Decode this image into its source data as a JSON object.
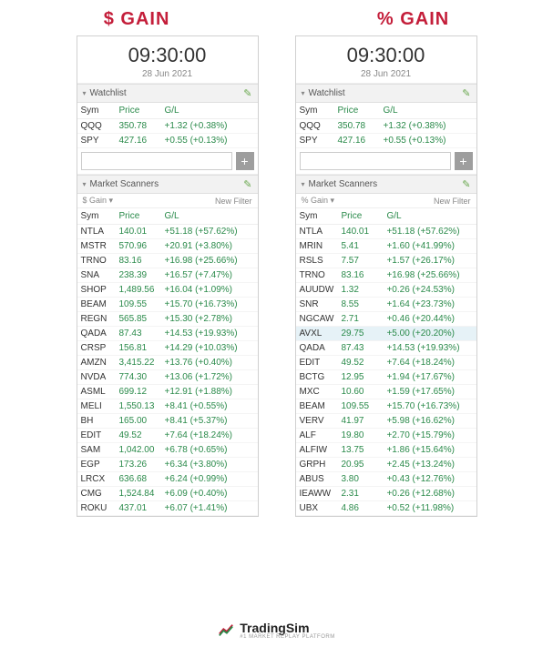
{
  "headings": {
    "left": "$ GAIN",
    "right": "% GAIN",
    "color": "#c41e3a"
  },
  "clock": {
    "time": "09:30:00",
    "date": "28 Jun 2021"
  },
  "colors": {
    "gain": "#2a8a4a",
    "border": "#d0d0d0",
    "section_bg": "#f2f2f2",
    "highlight": "#e6f2f7"
  },
  "watchlist": {
    "title": "Watchlist",
    "columns": [
      "Sym",
      "Price",
      "G/L"
    ],
    "rows": [
      {
        "sym": "QQQ",
        "price": "350.78",
        "gl": "+1.32 (+0.38%)"
      },
      {
        "sym": "SPY",
        "price": "427.16",
        "gl": "+0.55 (+0.13%)"
      }
    ],
    "add_placeholder": ""
  },
  "left_scanner": {
    "title": "Market Scanners",
    "filter_label": "$ Gain ▾",
    "new_filter": "New Filter",
    "columns": [
      "Sym",
      "Price",
      "G/L"
    ],
    "rows": [
      {
        "sym": "NTLA",
        "price": "140.01",
        "gl": "+51.18 (+57.62%)"
      },
      {
        "sym": "MSTR",
        "price": "570.96",
        "gl": "+20.91 (+3.80%)"
      },
      {
        "sym": "TRNO",
        "price": "83.16",
        "gl": "+16.98 (+25.66%)"
      },
      {
        "sym": "SNA",
        "price": "238.39",
        "gl": "+16.57 (+7.47%)"
      },
      {
        "sym": "SHOP",
        "price": "1,489.56",
        "gl": "+16.04 (+1.09%)"
      },
      {
        "sym": "BEAM",
        "price": "109.55",
        "gl": "+15.70 (+16.73%)"
      },
      {
        "sym": "REGN",
        "price": "565.85",
        "gl": "+15.30 (+2.78%)"
      },
      {
        "sym": "QADA",
        "price": "87.43",
        "gl": "+14.53 (+19.93%)"
      },
      {
        "sym": "CRSP",
        "price": "156.81",
        "gl": "+14.29 (+10.03%)"
      },
      {
        "sym": "AMZN",
        "price": "3,415.22",
        "gl": "+13.76 (+0.40%)"
      },
      {
        "sym": "NVDA",
        "price": "774.30",
        "gl": "+13.06 (+1.72%)"
      },
      {
        "sym": "ASML",
        "price": "699.12",
        "gl": "+12.91 (+1.88%)"
      },
      {
        "sym": "MELI",
        "price": "1,550.13",
        "gl": "+8.41 (+0.55%)"
      },
      {
        "sym": "BH",
        "price": "165.00",
        "gl": "+8.41 (+5.37%)"
      },
      {
        "sym": "EDIT",
        "price": "49.52",
        "gl": "+7.64 (+18.24%)"
      },
      {
        "sym": "SAM",
        "price": "1,042.00",
        "gl": "+6.78 (+0.65%)"
      },
      {
        "sym": "EGP",
        "price": "173.26",
        "gl": "+6.34 (+3.80%)"
      },
      {
        "sym": "LRCX",
        "price": "636.68",
        "gl": "+6.24 (+0.99%)"
      },
      {
        "sym": "CMG",
        "price": "1,524.84",
        "gl": "+6.09 (+0.40%)"
      },
      {
        "sym": "ROKU",
        "price": "437.01",
        "gl": "+6.07 (+1.41%)"
      }
    ]
  },
  "right_scanner": {
    "title": "Market Scanners",
    "filter_label": "% Gain ▾",
    "new_filter": "New Filter",
    "columns": [
      "Sym",
      "Price",
      "G/L"
    ],
    "rows": [
      {
        "sym": "NTLA",
        "price": "140.01",
        "gl": "+51.18 (+57.62%)"
      },
      {
        "sym": "MRIN",
        "price": "5.41",
        "gl": "+1.60 (+41.99%)"
      },
      {
        "sym": "RSLS",
        "price": "7.57",
        "gl": "+1.57 (+26.17%)"
      },
      {
        "sym": "TRNO",
        "price": "83.16",
        "gl": "+16.98 (+25.66%)"
      },
      {
        "sym": "AUUDW",
        "price": "1.32",
        "gl": "+0.26 (+24.53%)"
      },
      {
        "sym": "SNR",
        "price": "8.55",
        "gl": "+1.64 (+23.73%)"
      },
      {
        "sym": "NGCAW",
        "price": "2.71",
        "gl": "+0.46 (+20.44%)"
      },
      {
        "sym": "AVXL",
        "price": "29.75",
        "gl": "+5.00 (+20.20%)",
        "highlight": true
      },
      {
        "sym": "QADA",
        "price": "87.43",
        "gl": "+14.53 (+19.93%)"
      },
      {
        "sym": "EDIT",
        "price": "49.52",
        "gl": "+7.64 (+18.24%)"
      },
      {
        "sym": "BCTG",
        "price": "12.95",
        "gl": "+1.94 (+17.67%)"
      },
      {
        "sym": "MXC",
        "price": "10.60",
        "gl": "+1.59 (+17.65%)"
      },
      {
        "sym": "BEAM",
        "price": "109.55",
        "gl": "+15.70 (+16.73%)"
      },
      {
        "sym": "VERV",
        "price": "41.97",
        "gl": "+5.98 (+16.62%)"
      },
      {
        "sym": "ALF",
        "price": "19.80",
        "gl": "+2.70 (+15.79%)"
      },
      {
        "sym": "ALFIW",
        "price": "13.75",
        "gl": "+1.86 (+15.64%)"
      },
      {
        "sym": "GRPH",
        "price": "20.95",
        "gl": "+2.45 (+13.24%)"
      },
      {
        "sym": "ABUS",
        "price": "3.80",
        "gl": "+0.43 (+12.76%)"
      },
      {
        "sym": "IEAWW",
        "price": "2.31",
        "gl": "+0.26 (+12.68%)"
      },
      {
        "sym": "UBX",
        "price": "4.86",
        "gl": "+0.52 (+11.98%)"
      }
    ]
  },
  "logo": {
    "text": "TradingSim",
    "sub": "#1 MARKET REPLAY PLATFORM"
  }
}
